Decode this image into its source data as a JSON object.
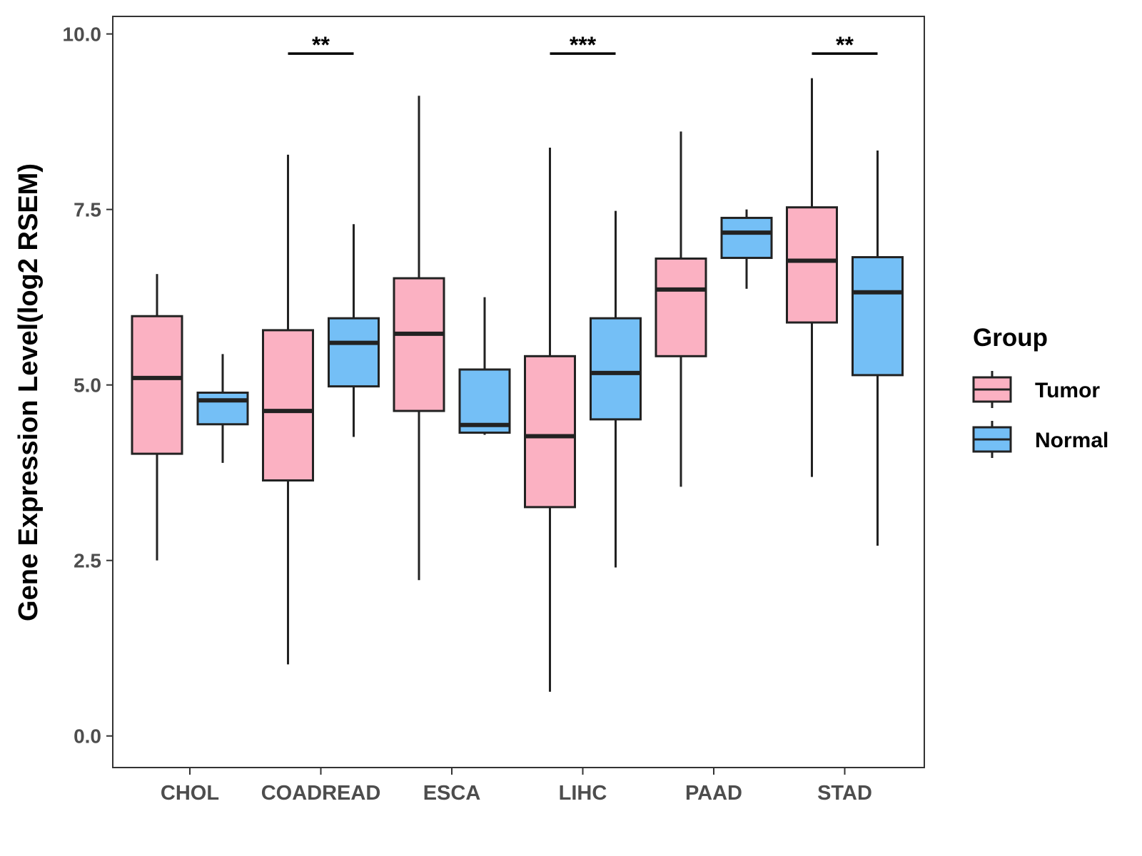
{
  "chart_data": {
    "type": "boxplot",
    "title": "",
    "xlabel": "",
    "ylabel": "Gene Expression Level(log2 RSEM)",
    "ylim": [
      -0.45,
      10.25
    ],
    "yticks": [
      0.0,
      2.5,
      5.0,
      7.5,
      10.0
    ],
    "ytick_labels": [
      "0.0",
      "2.5",
      "5.0",
      "7.5",
      "10.0"
    ],
    "categories": [
      "CHOL",
      "COADREAD",
      "ESCA",
      "LIHC",
      "PAAD",
      "STAD"
    ],
    "legend": {
      "title": "Group",
      "position": "right",
      "entries": [
        {
          "name": "Tumor",
          "color": "#FBB1C2"
        },
        {
          "name": "Normal",
          "color": "#74BFF6"
        }
      ]
    },
    "series": [
      {
        "name": "Tumor",
        "color": "#FBB1C2",
        "boxes": [
          {
            "category": "CHOL",
            "whisker_low": 2.5,
            "q1": 4.02,
            "median": 5.1,
            "q3": 5.98,
            "whisker_high": 6.58
          },
          {
            "category": "COADREAD",
            "whisker_low": 1.02,
            "q1": 3.64,
            "median": 4.63,
            "q3": 5.78,
            "whisker_high": 8.28
          },
          {
            "category": "ESCA",
            "whisker_low": 2.22,
            "q1": 4.63,
            "median": 5.73,
            "q3": 6.52,
            "whisker_high": 9.12
          },
          {
            "category": "LIHC",
            "whisker_low": 0.63,
            "q1": 3.26,
            "median": 4.27,
            "q3": 5.41,
            "whisker_high": 8.38
          },
          {
            "category": "PAAD",
            "whisker_low": 3.55,
            "q1": 5.41,
            "median": 6.36,
            "q3": 6.8,
            "whisker_high": 8.61
          },
          {
            "category": "STAD",
            "whisker_low": 3.69,
            "q1": 5.89,
            "median": 6.77,
            "q3": 7.53,
            "whisker_high": 9.37
          }
        ]
      },
      {
        "name": "Normal",
        "color": "#74BFF6",
        "boxes": [
          {
            "category": "CHOL",
            "whisker_low": 3.89,
            "q1": 4.44,
            "median": 4.78,
            "q3": 4.89,
            "whisker_high": 5.44
          },
          {
            "category": "COADREAD",
            "whisker_low": 4.26,
            "q1": 4.98,
            "median": 5.6,
            "q3": 5.95,
            "whisker_high": 7.29
          },
          {
            "category": "ESCA",
            "whisker_low": 4.29,
            "q1": 4.32,
            "median": 4.43,
            "q3": 5.22,
            "whisker_high": 6.25
          },
          {
            "category": "LIHC",
            "whisker_low": 2.4,
            "q1": 4.51,
            "median": 5.17,
            "q3": 5.95,
            "whisker_high": 7.48
          },
          {
            "category": "PAAD",
            "whisker_low": 6.37,
            "q1": 6.81,
            "median": 7.17,
            "q3": 7.38,
            "whisker_high": 7.5
          },
          {
            "category": "STAD",
            "whisker_low": 2.71,
            "q1": 5.14,
            "median": 6.32,
            "q3": 6.82,
            "whisker_high": 8.34
          }
        ]
      }
    ],
    "annotations": [
      {
        "category": "COADREAD",
        "text": "**",
        "y": 9.72
      },
      {
        "category": "LIHC",
        "text": "***",
        "y": 9.72
      },
      {
        "category": "STAD",
        "text": "**",
        "y": 9.72
      }
    ]
  }
}
